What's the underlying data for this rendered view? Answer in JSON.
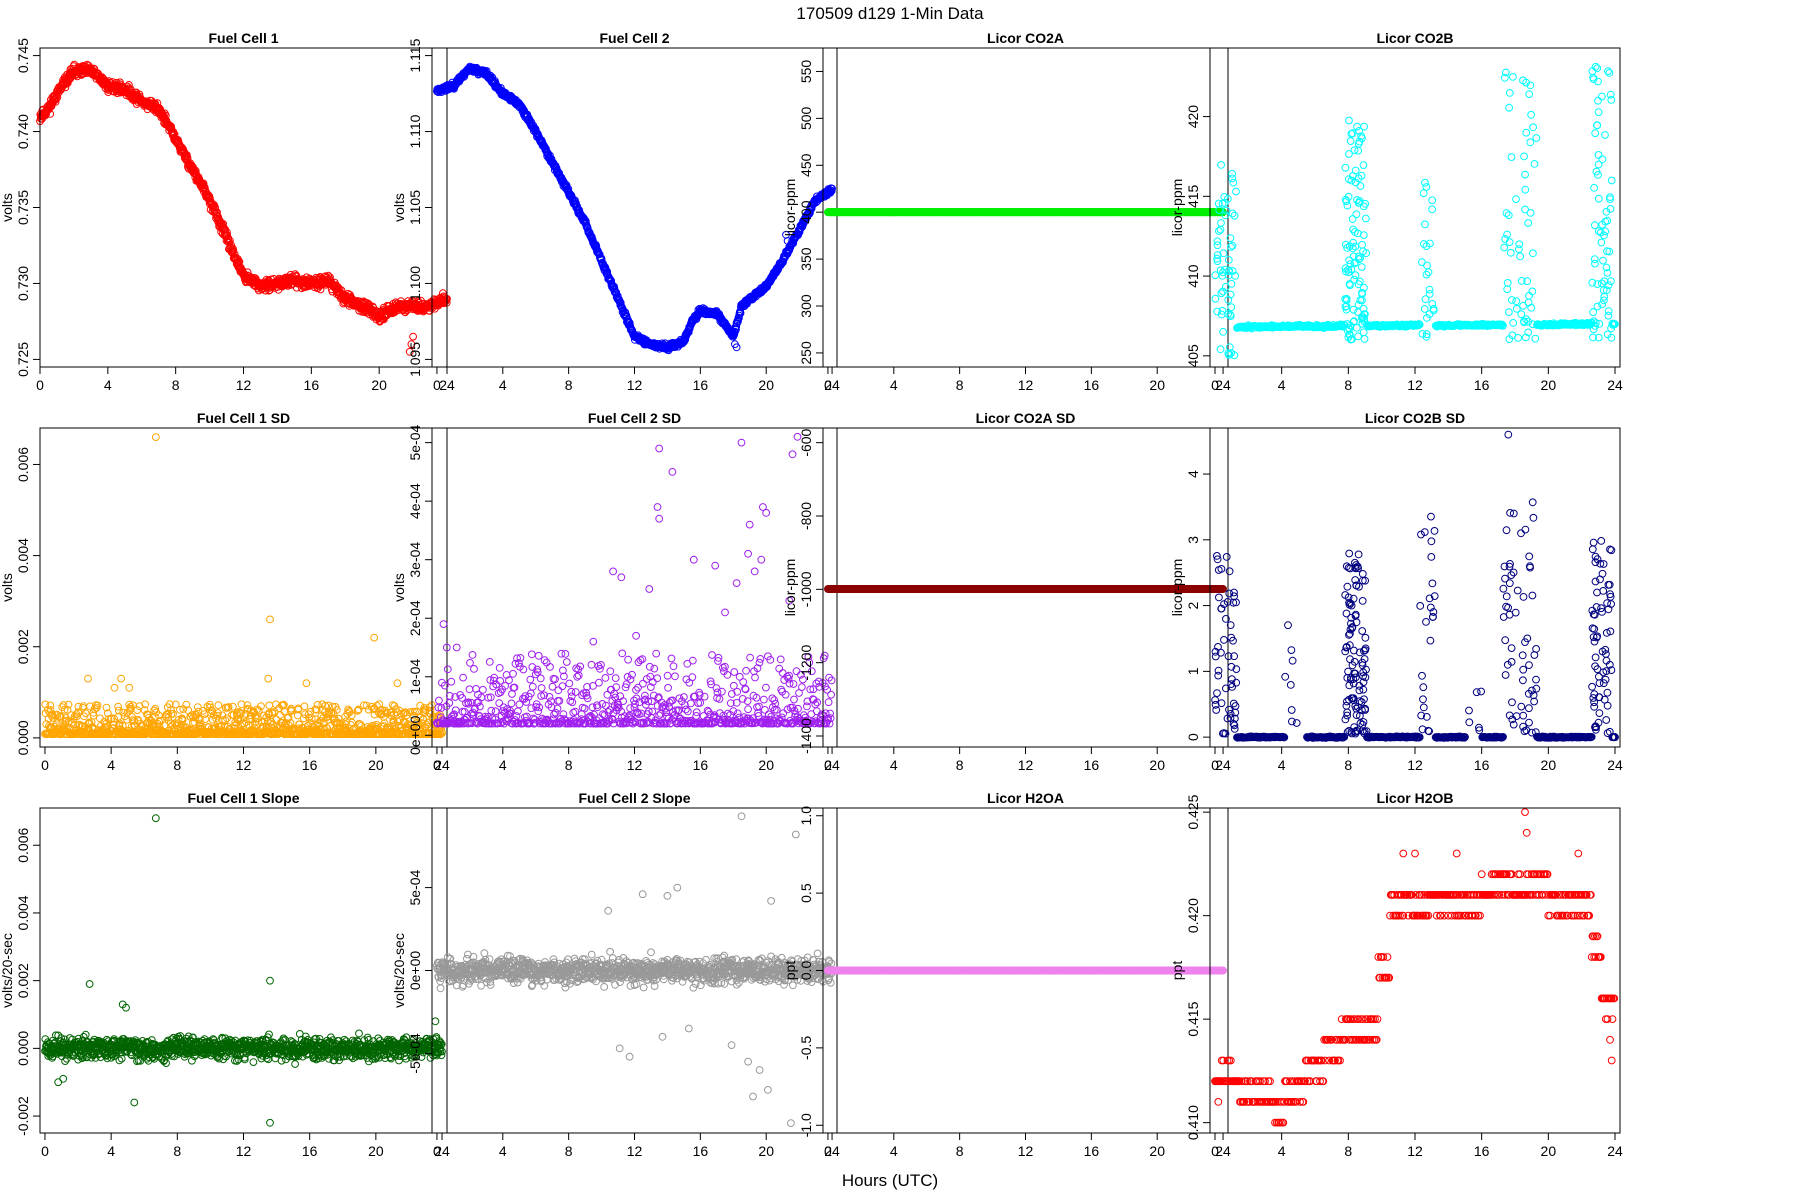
{
  "figure": {
    "title": "170509   d129   1-Min Data",
    "xlabel": "Hours (UTC)"
  },
  "chart_data": [
    {
      "id": "fc1",
      "type": "scatter",
      "title": "Fuel Cell 1",
      "ylabel": "volts",
      "color": "#ff0000",
      "xlim": [
        0,
        24
      ],
      "ylim": [
        0.7245,
        0.7455
      ],
      "xticks": [
        0,
        4,
        8,
        12,
        16,
        20,
        24
      ],
      "yticks": [
        0.725,
        0.73,
        0.735,
        0.74,
        0.745
      ],
      "ytick_labels": [
        "0.725",
        "0.730",
        "0.735",
        "0.740",
        "0.745"
      ],
      "gen": {
        "kind": "path",
        "knots": [
          [
            0,
            0.741
          ],
          [
            0.5,
            0.7415
          ],
          [
            1,
            0.7425
          ],
          [
            2,
            0.744
          ],
          [
            3,
            0.744
          ],
          [
            4,
            0.743
          ],
          [
            5,
            0.7428
          ],
          [
            6,
            0.742
          ],
          [
            7,
            0.7415
          ],
          [
            8,
            0.7395
          ],
          [
            9,
            0.7375
          ],
          [
            10,
            0.7355
          ],
          [
            11,
            0.733
          ],
          [
            12,
            0.7305
          ],
          [
            13,
            0.7298
          ],
          [
            14,
            0.73
          ],
          [
            15,
            0.7302
          ],
          [
            16,
            0.73
          ],
          [
            17,
            0.7302
          ],
          [
            18,
            0.729
          ],
          [
            19,
            0.7285
          ],
          [
            20,
            0.7278
          ],
          [
            21,
            0.7285
          ],
          [
            22,
            0.7285
          ],
          [
            23,
            0.7285
          ],
          [
            24,
            0.729
          ]
        ],
        "noise": 0.00035,
        "step": 0.02,
        "seed": 11,
        "extras": [
          [
            21.8,
            0.7255
          ],
          [
            21.9,
            0.726
          ],
          [
            22.0,
            0.7265
          ]
        ]
      }
    },
    {
      "id": "fc2",
      "type": "scatter",
      "title": "Fuel Cell 2",
      "ylabel": "volts",
      "color": "#0000ff",
      "xlim": [
        -0.3,
        24.3
      ],
      "ylim": [
        1.0945,
        1.1155
      ],
      "xticks": [
        0,
        4,
        8,
        12,
        16,
        20,
        24
      ],
      "yticks": [
        1.095,
        1.1,
        1.105,
        1.11,
        1.115
      ],
      "ytick_labels": [
        "1.095",
        "1.100",
        "1.105",
        "1.110",
        "1.115"
      ],
      "gen": {
        "kind": "path",
        "knots": [
          [
            0,
            1.1127
          ],
          [
            1,
            1.113
          ],
          [
            2,
            1.1142
          ],
          [
            3,
            1.1138
          ],
          [
            4,
            1.1125
          ],
          [
            5,
            1.1118
          ],
          [
            6,
            1.11
          ],
          [
            7,
            1.108
          ],
          [
            8,
            1.106
          ],
          [
            9,
            1.104
          ],
          [
            10,
            1.1015
          ],
          [
            11,
            1.099
          ],
          [
            12,
            1.0965
          ],
          [
            13,
            1.096
          ],
          [
            14,
            1.0958
          ],
          [
            15,
            1.0962
          ],
          [
            15.5,
            1.0975
          ],
          [
            16,
            1.0982
          ],
          [
            17,
            1.098
          ],
          [
            18,
            1.0965
          ],
          [
            18.5,
            1.0985
          ],
          [
            19,
            1.099
          ],
          [
            20,
            1.0998
          ],
          [
            21,
            1.1015
          ],
          [
            22,
            1.1035
          ],
          [
            23,
            1.1055
          ],
          [
            24,
            1.1062
          ]
        ],
        "noise": 0.00018,
        "step": 0.02,
        "seed": 23,
        "extras": [
          [
            21.2,
            1.1032
          ],
          [
            21.3,
            1.1028
          ],
          [
            21.4,
            1.1022
          ],
          [
            18.1,
            1.096
          ],
          [
            18.2,
            1.0958
          ]
        ]
      }
    },
    {
      "id": "co2a",
      "type": "scatter",
      "title": "Licor CO2A",
      "ylabel": "licor-ppm",
      "color": "#00ee00",
      "xlim": [
        -0.3,
        24.3
      ],
      "ylim": [
        235,
        575
      ],
      "xticks": [
        0,
        4,
        8,
        12,
        16,
        20,
        24
      ],
      "yticks": [
        250,
        300,
        350,
        400,
        450,
        500,
        550
      ],
      "ytick_labels": [
        "250",
        "300",
        "350",
        "400",
        "450",
        "500",
        "550"
      ],
      "gen": {
        "kind": "flat",
        "value": 400,
        "step": 0.02
      }
    },
    {
      "id": "co2b",
      "type": "scatter",
      "title": "Licor CO2B",
      "ylabel": "licor-ppm",
      "color": "#00ffff",
      "xlim": [
        -0.3,
        24.3
      ],
      "ylim": [
        404.3,
        424.3
      ],
      "xticks": [
        0,
        4,
        8,
        12,
        16,
        20,
        24
      ],
      "yticks": [
        405,
        410,
        415,
        420
      ],
      "ytick_labels": [
        "405",
        "410",
        "415",
        "420"
      ],
      "gen": {
        "kind": "base_spikes",
        "base": [
          [
            0,
            406.8
          ],
          [
            24,
            407.0
          ]
        ],
        "noise": 0.08,
        "step": 0.04,
        "seed": 37,
        "clusters": [
          [
            0,
            1.3,
            405,
            417.5,
            60
          ],
          [
            7.8,
            9.1,
            406,
            420,
            110
          ],
          [
            12.3,
            13.2,
            406,
            416,
            25
          ],
          [
            17.3,
            19.3,
            406,
            423,
            60
          ],
          [
            22.6,
            23.8,
            406,
            424,
            70
          ]
        ]
      }
    },
    {
      "id": "fc1sd",
      "type": "scatter",
      "title": "Fuel Cell 1 SD",
      "ylabel": "volts",
      "color": "#ffa500",
      "xlim": [
        -0.3,
        24.3
      ],
      "ylim": [
        -0.0002,
        0.0068
      ],
      "xticks": [
        0,
        4,
        8,
        12,
        16,
        20,
        24
      ],
      "yticks": [
        0,
        0.002,
        0.004,
        0.006
      ],
      "ytick_labels": [
        "0.000",
        "0.002",
        "0.004",
        "0.006"
      ],
      "gen": {
        "kind": "noise",
        "base": 8e-05,
        "scale": 0.00022,
        "step": 0.02,
        "seed": 41,
        "extras": [
          [
            6.7,
            0.0066
          ],
          [
            13.6,
            0.0026
          ],
          [
            19.9,
            0.0022
          ],
          [
            4.6,
            0.0013
          ],
          [
            2.6,
            0.0013
          ],
          [
            15.8,
            0.0012
          ],
          [
            21.3,
            0.0012
          ],
          [
            4.2,
            0.0011
          ],
          [
            5.1,
            0.0011
          ],
          [
            13.5,
            0.0013
          ]
        ]
      }
    },
    {
      "id": "fc2sd",
      "type": "scatter",
      "title": "Fuel Cell 2 SD",
      "ylabel": "volts",
      "color": "#a020f0",
      "xlim": [
        -0.3,
        24.3
      ],
      "ylim": [
        -2e-05,
        0.000525
      ],
      "xticks": [
        0,
        4,
        8,
        12,
        16,
        20,
        24
      ],
      "yticks": [
        0,
        0.0001,
        0.0002,
        0.0003,
        0.0004,
        0.0005
      ],
      "ytick_labels": [
        "0e+00",
        "1e-04",
        "2e-04",
        "3e-04",
        "4e-04",
        "5e-04"
      ],
      "gen": {
        "kind": "noise",
        "base": 2e-05,
        "scale": 4e-05,
        "step": 0.03,
        "seed": 53,
        "extras": [
          [
            13.5,
            0.00049
          ],
          [
            14.3,
            0.00045
          ],
          [
            13.4,
            0.00039
          ],
          [
            13.5,
            0.00037
          ],
          [
            18.5,
            0.0005
          ],
          [
            21.9,
            0.00051
          ],
          [
            21.6,
            0.00048
          ],
          [
            19.8,
            0.00039
          ],
          [
            19.0,
            0.00036
          ],
          [
            20.0,
            0.00038
          ],
          [
            15.6,
            0.0003
          ],
          [
            10.7,
            0.00028
          ],
          [
            11.2,
            0.00027
          ],
          [
            12.9,
            0.00025
          ],
          [
            0.4,
            0.00019
          ],
          [
            0.6,
            0.00015
          ],
          [
            1.2,
            0.00015
          ],
          [
            16.9,
            0.00029
          ],
          [
            18.9,
            0.00031
          ],
          [
            19.7,
            0.0003
          ],
          [
            21.4,
            0.00023
          ],
          [
            9.5,
            0.00016
          ],
          [
            12.1,
            0.00017
          ],
          [
            17.5,
            0.00021
          ],
          [
            18.2,
            0.00026
          ],
          [
            19.3,
            0.00028
          ]
        ]
      }
    },
    {
      "id": "co2asd",
      "type": "scatter",
      "title": "Licor CO2A SD",
      "ylabel": "licor-ppm",
      "color": "#8b0000",
      "xlim": [
        -0.3,
        24.3
      ],
      "ylim": [
        -1430,
        -560
      ],
      "xticks": [
        0,
        4,
        8,
        12,
        16,
        20,
        24
      ],
      "yticks": [
        -1400,
        -1200,
        -1000,
        -800,
        -600
      ],
      "ytick_labels": [
        "-1400",
        "-1200",
        "-1000",
        "-800",
        "-600"
      ],
      "gen": {
        "kind": "flat",
        "value": -999,
        "step": 0.02
      }
    },
    {
      "id": "co2bsd",
      "type": "scatter",
      "title": "Licor CO2B SD",
      "ylabel": "licor-ppm",
      "color": "#000080",
      "xlim": [
        -0.3,
        24.3
      ],
      "ylim": [
        -0.15,
        4.7
      ],
      "xticks": [
        0,
        4,
        8,
        12,
        16,
        20,
        24
      ],
      "yticks": [
        0,
        1,
        2,
        3,
        4
      ],
      "ytick_labels": [
        "0",
        "1",
        "2",
        "3",
        "4"
      ],
      "gen": {
        "kind": "base_spikes",
        "base": [
          [
            0,
            0.0
          ],
          [
            24,
            0.0
          ]
        ],
        "noise": 0.01,
        "step": 0.04,
        "seed": 67,
        "clusters": [
          [
            0,
            1.3,
            0.05,
            2.8,
            55
          ],
          [
            7.8,
            9.1,
            0.05,
            2.8,
            110
          ],
          [
            12.3,
            13.2,
            0.05,
            3.4,
            25
          ],
          [
            17.3,
            19.3,
            0.05,
            3.6,
            60
          ],
          [
            22.6,
            23.8,
            0.05,
            3.0,
            70
          ],
          [
            4.2,
            5.5,
            0.05,
            2.2,
            8
          ],
          [
            15.0,
            16.0,
            0.05,
            1.5,
            6
          ]
        ],
        "extras": [
          [
            17.6,
            4.6
          ]
        ]
      }
    },
    {
      "id": "fc1sl",
      "type": "scatter",
      "title": "Fuel Cell 1 Slope",
      "ylabel": "volts/20-sec",
      "color": "#006400",
      "xlim": [
        -0.3,
        24.3
      ],
      "ylim": [
        -0.0025,
        0.0071
      ],
      "xticks": [
        0,
        4,
        8,
        12,
        16,
        20,
        24
      ],
      "yticks": [
        -0.002,
        0,
        0.002,
        0.004,
        0.006
      ],
      "ytick_labels": [
        "-0.002",
        "0.000",
        "0.002",
        "0.004",
        "0.006"
      ],
      "gen": {
        "kind": "symnoise",
        "center": 0,
        "scale": 0.0003,
        "step": 0.02,
        "seed": 71,
        "extras": [
          [
            6.7,
            0.0068
          ],
          [
            13.6,
            0.002
          ],
          [
            13.6,
            -0.0022
          ],
          [
            2.7,
            0.0019
          ],
          [
            4.7,
            0.0013
          ],
          [
            4.9,
            0.0012
          ],
          [
            5.4,
            -0.0016
          ],
          [
            23.6,
            0.0008
          ],
          [
            0.8,
            -0.001
          ],
          [
            1.1,
            -0.0009
          ]
        ]
      }
    },
    {
      "id": "fc2sl",
      "type": "scatter",
      "title": "Fuel Cell 2 Slope",
      "ylabel": "volts/20-sec",
      "color": "#999999",
      "xlim": [
        -0.3,
        24.3
      ],
      "ylim": [
        -0.00098,
        0.00098
      ],
      "xticks": [
        0,
        4,
        8,
        12,
        16,
        20,
        24
      ],
      "yticks": [
        -0.0005,
        0,
        0.0005
      ],
      "ytick_labels": [
        "-5e-04",
        "0e+00",
        "5e-04"
      ],
      "gen": {
        "kind": "symnoise",
        "center": 0,
        "scale": 7.5e-05,
        "step": 0.02,
        "seed": 83,
        "extras": [
          [
            18.5,
            0.00093
          ],
          [
            21.8,
            0.00082
          ],
          [
            21.5,
            -0.00092
          ],
          [
            19.2,
            -0.00076
          ],
          [
            20.1,
            -0.00072
          ],
          [
            14.0,
            0.00045
          ],
          [
            14.6,
            0.0005
          ],
          [
            12.5,
            0.00046
          ],
          [
            11.1,
            -0.00047
          ],
          [
            11.7,
            -0.00052
          ],
          [
            10.4,
            0.00036
          ],
          [
            13.7,
            -0.0004
          ],
          [
            18.9,
            -0.00055
          ],
          [
            19.6,
            -0.0006
          ],
          [
            20.3,
            0.00042
          ],
          [
            17.9,
            -0.00045
          ],
          [
            15.3,
            -0.00035
          ]
        ]
      }
    },
    {
      "id": "h2oa",
      "type": "scatter",
      "title": "Licor H2OA",
      "ylabel": "ppt",
      "color": "#ee82ee",
      "xlim": [
        -0.3,
        24.3
      ],
      "ylim": [
        -1.05,
        1.05
      ],
      "xticks": [
        0,
        4,
        8,
        12,
        16,
        20,
        24
      ],
      "yticks": [
        -1,
        -0.5,
        0,
        0.5,
        1
      ],
      "ytick_labels": [
        "-1.0",
        "-0.5",
        "0.0",
        "0.5",
        "1.0"
      ],
      "gen": {
        "kind": "flat",
        "value": 0,
        "step": 0.02
      }
    },
    {
      "id": "h2ob",
      "type": "scatter",
      "title": "Licor H2OB",
      "ylabel": "ppt",
      "color": "#ff0000",
      "xlim": [
        -0.3,
        24.3
      ],
      "ylim": [
        0.4095,
        0.4252
      ],
      "xticks": [
        0,
        4,
        8,
        12,
        16,
        20,
        24
      ],
      "yticks": [
        0.41,
        0.415,
        0.42,
        0.425
      ],
      "ytick_labels": [
        "0.410",
        "0.415",
        "0.420",
        "0.425"
      ],
      "gen": {
        "kind": "quant",
        "levels": [
          [
            0,
            1.5,
            0.412,
            0.413
          ],
          [
            1.5,
            2.2,
            0.411,
            0.412
          ],
          [
            2.2,
            3.5,
            0.411,
            0.412
          ],
          [
            3.5,
            4.1,
            0.41,
            0.411
          ],
          [
            4.1,
            5.3,
            0.411,
            0.412
          ],
          [
            5.3,
            6.5,
            0.413,
            0.412
          ],
          [
            6.5,
            7.5,
            0.413,
            0.414
          ],
          [
            7.5,
            8.5,
            0.414,
            0.415
          ],
          [
            8.5,
            9.8,
            0.415,
            0.414
          ],
          [
            9.8,
            10.5,
            0.417,
            0.418
          ],
          [
            10.5,
            11.2,
            0.42,
            0.421
          ],
          [
            11.2,
            16.0,
            0.421,
            0.42
          ],
          [
            16.0,
            20.0,
            0.421,
            0.422
          ],
          [
            20.0,
            22.6,
            0.421,
            0.42
          ],
          [
            22.6,
            23.2,
            0.418,
            0.419
          ],
          [
            23.2,
            24.0,
            0.416,
            0.415
          ]
        ],
        "step": 0.05,
        "seed": 97,
        "extras": [
          [
            18.6,
            0.425
          ],
          [
            18.7,
            0.424
          ],
          [
            11.3,
            0.423
          ],
          [
            12.0,
            0.423
          ],
          [
            14.5,
            0.423
          ],
          [
            21.8,
            0.423
          ],
          [
            0.2,
            0.411
          ],
          [
            23.7,
            0.414
          ],
          [
            23.8,
            0.413
          ]
        ]
      }
    }
  ]
}
